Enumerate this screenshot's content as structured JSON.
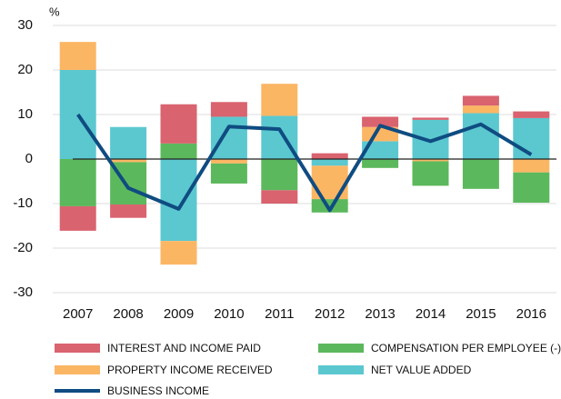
{
  "chart_data": {
    "type": "bar",
    "unit": "%",
    "categories": [
      "2007",
      "2008",
      "2009",
      "2010",
      "2011",
      "2012",
      "2013",
      "2014",
      "2015",
      "2016"
    ],
    "series": [
      {
        "name": "INTEREST AND INCOME PAID",
        "color": "#d9636f",
        "values": [
          -5.5,
          -3,
          8.8,
          3.3,
          -3,
          1.3,
          2.3,
          0.5,
          2.2,
          1.5
        ]
      },
      {
        "name": "PROPERTY INCOME RECEIVED",
        "color": "#fbb664",
        "values": [
          6.3,
          -0.7,
          -5.3,
          -1,
          7.2,
          -7.5,
          3.2,
          -0.5,
          1.7,
          -3
        ]
      },
      {
        "name": "COMPENSATION PER EMPLOYEE (-)",
        "color": "#5cb85c",
        "values": [
          -10.6,
          -9.5,
          3.5,
          -4.5,
          -7,
          -3,
          -2,
          -5.5,
          -6.7,
          -6.8
        ]
      },
      {
        "name": "NET VALUE ADDED",
        "color": "#5bc8d0",
        "values": [
          20,
          7.2,
          -18.4,
          9.5,
          9.7,
          -1.5,
          4,
          8.8,
          10.3,
          9.2
        ]
      },
      {
        "name": "BUSINESS INCOME",
        "type": "line",
        "color": "#0f4c81",
        "values": [
          10,
          -6.5,
          -11.2,
          7.3,
          6.7,
          -11.5,
          7.5,
          4,
          7.8,
          1
        ]
      }
    ],
    "ylim": [
      -30,
      30
    ],
    "yticks": [
      -30,
      -20,
      -10,
      0,
      10,
      20,
      30
    ],
    "grid": true
  }
}
